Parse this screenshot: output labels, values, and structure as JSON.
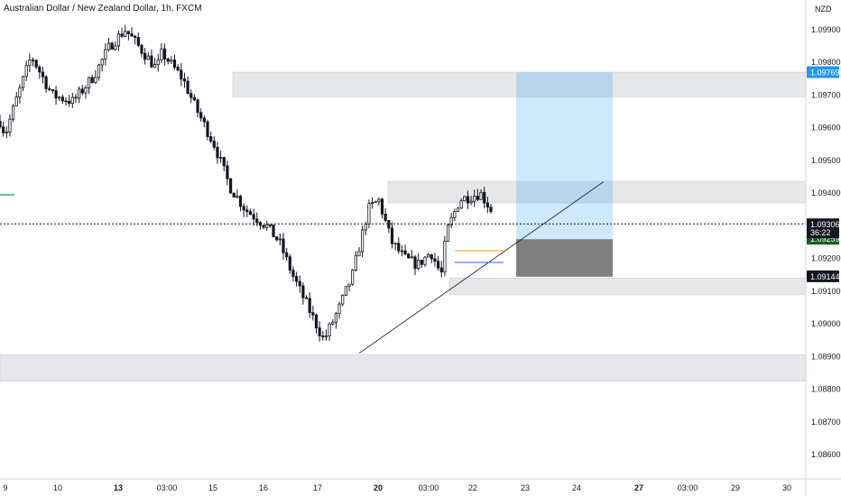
{
  "header": {
    "title": "Australian Dollar / New Zealand Dollar, 1h, FXCM"
  },
  "axis": {
    "currency": "NZD"
  },
  "chart_data": {
    "type": "candlestick",
    "title": "Australian Dollar / New Zealand Dollar, 1h, FXCM",
    "y_ticks": [
      "1.09900",
      "1.09800",
      "1.09700",
      "1.09600",
      "1.09500",
      "1.09400",
      "1.09200",
      "1.09100",
      "1.09000",
      "1.08900",
      "1.08800",
      "1.08700",
      "1.08600"
    ],
    "x_ticks": [
      "9",
      "10",
      "13",
      "03:00",
      "15",
      "16",
      "17",
      "20",
      "03:00",
      "22",
      "23",
      "24",
      "27",
      "03:00",
      "29",
      "30"
    ],
    "ylim": [
      1.0855,
      1.0995
    ],
    "grid": false,
    "current_price": "1.09306",
    "countdown": "36:22",
    "price_tags": [
      {
        "name": "take-profit",
        "value": "1.09769",
        "bg": "#2196f3",
        "fg": "#ffffff"
      },
      {
        "name": "stop-loss",
        "value": "1.09144",
        "bg": "#131722",
        "fg": "#ffffff"
      },
      {
        "name": "entry",
        "value": "1.09259",
        "bg": "#1b5e20",
        "fg": "#ffffff"
      }
    ],
    "zones": [
      {
        "name": "supply-zone-upper",
        "from": 1.09695,
        "to": 1.0977
      },
      {
        "name": "resistance-zone",
        "from": 1.0937,
        "to": 1.09435
      },
      {
        "name": "demand-zone",
        "from": 1.0909,
        "to": 1.0914
      },
      {
        "name": "support-zone-lower",
        "from": 1.08825,
        "to": 1.08905
      }
    ],
    "position": {
      "type": "long",
      "entry": 1.09259,
      "target": 1.09769,
      "stop": 1.09144
    },
    "trendline": {
      "from": {
        "day": 18.5,
        "price": 1.0891
      },
      "to": {
        "day": 24.9,
        "price": 1.09435
      }
    },
    "colors": {
      "candle": "#131722",
      "zone": "#e5e7ea",
      "profit": "#2196f3",
      "loss": "#555555",
      "accent_teal": "#26a69a",
      "orange": "#ff9800",
      "blue_line": "#2962ff"
    }
  }
}
